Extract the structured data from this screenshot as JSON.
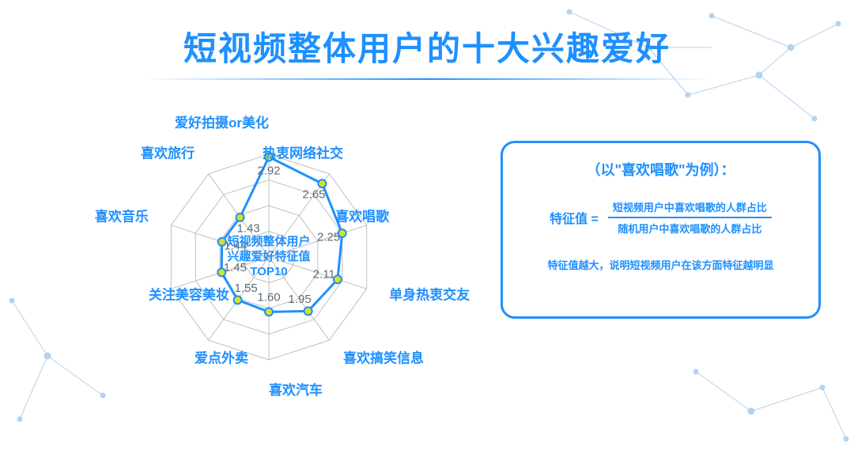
{
  "title": "短视频整体用户的十大兴趣爱好",
  "colors": {
    "accent": "#1e90ff",
    "grid": "#bfbfbf",
    "marker_fill": "#d9e021",
    "marker_stroke": "#1e90ff",
    "title": "#1e90ff",
    "axis_label": "#1e90ff",
    "center_label": "#1e90ff",
    "value_label": "#5b6b7a",
    "box_border": "#1e90ff",
    "box_text": "#1e90ff",
    "bg": "#ffffff",
    "network_stroke": "#2e7fd4"
  },
  "radar": {
    "type": "radar",
    "center_text_lines": [
      "短视频整体用户",
      "兴趣爱好特征值",
      "TOP10"
    ],
    "center_fontsize": 15,
    "axis_label_fontsize": 17,
    "value_label_fontsize": 15,
    "value_max": 3.0,
    "rings": 4,
    "line_width": 3,
    "marker_radius": 5,
    "axes": [
      {
        "label": "爱好拍摄or美化",
        "value": 2.92
      },
      {
        "label": "热衷网络社交",
        "value": 2.65
      },
      {
        "label": "喜欢唱歌",
        "value": 2.25
      },
      {
        "label": "单身热衷交友",
        "value": 2.11
      },
      {
        "label": "喜欢搞笑信息",
        "value": 1.95
      },
      {
        "label": "喜欢汽车",
        "value": 1.6
      },
      {
        "label": "爱点外卖",
        "value": 1.55
      },
      {
        "label": "关注美容美妆",
        "value": 1.45
      },
      {
        "label": "喜欢音乐",
        "value": 1.44
      },
      {
        "label": "喜欢旅行",
        "value": 1.43
      }
    ]
  },
  "side": {
    "header": "（以\"喜欢唱歌\"为例）：",
    "header_fontsize": 18,
    "lhs": "特征值  =",
    "numerator": "短视频用户中喜欢唱歌的人群占比",
    "denominator": "随机用户中喜欢唱歌的人群占比",
    "frac_fontsize": 13,
    "note": "特征值越大，说明短视频用户在该方面特征越明显",
    "note_fontsize": 13
  }
}
